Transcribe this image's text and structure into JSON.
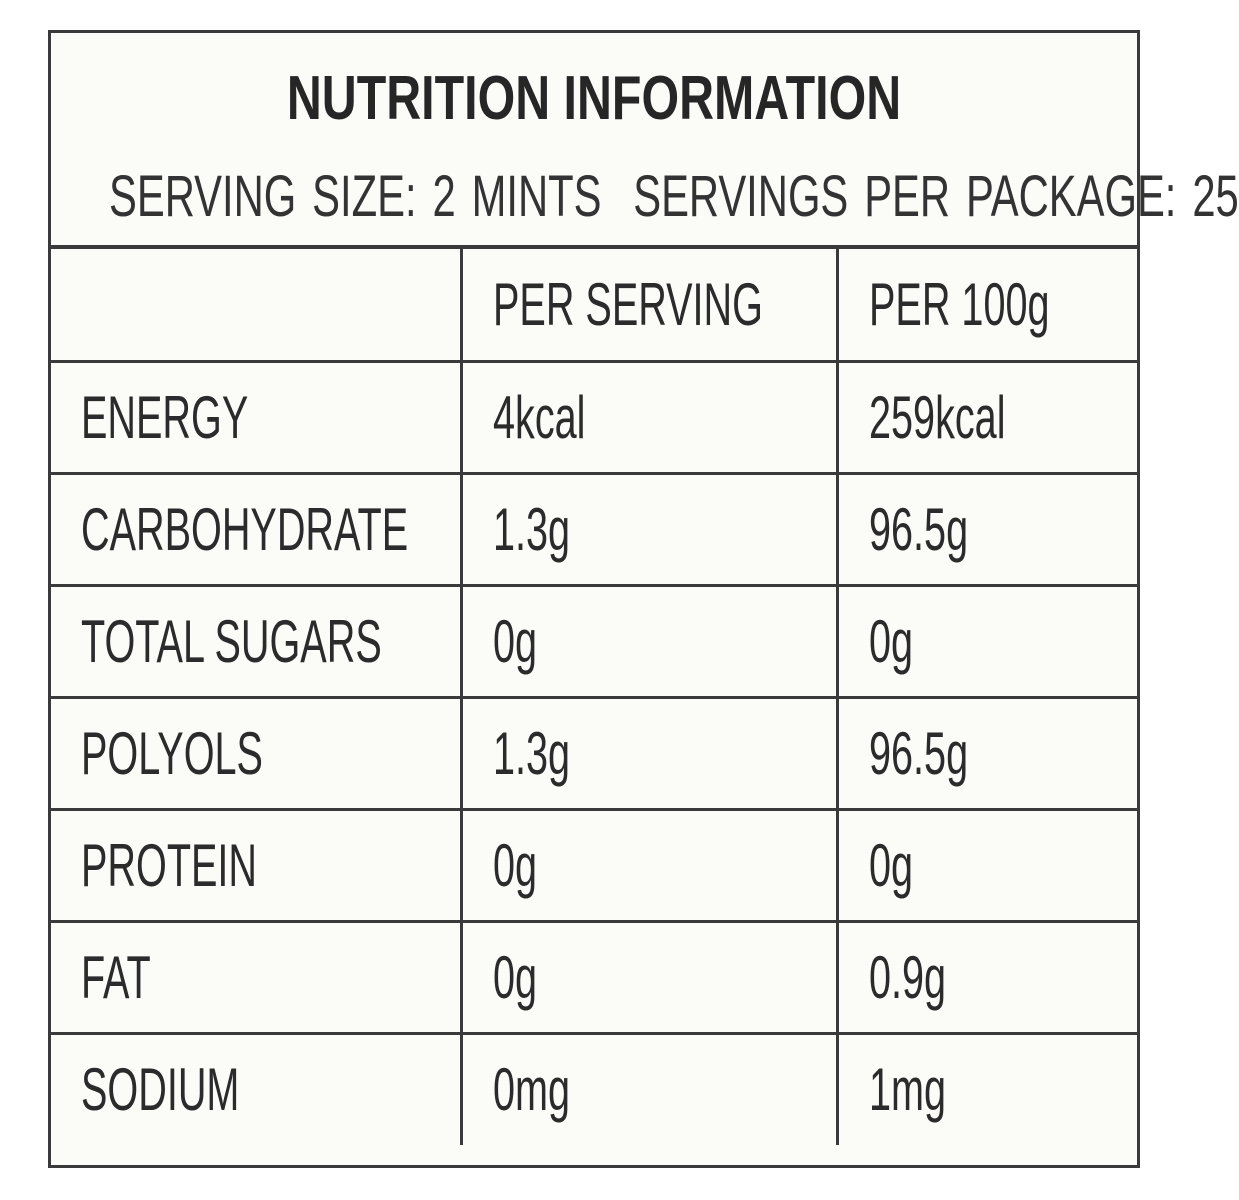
{
  "title": "NUTRITION INFORMATION",
  "serving": {
    "size": "SERVING SIZE: 2 MINTS",
    "per_package": "SERVINGS PER PACKAGE: 25"
  },
  "columns": [
    "",
    "PER SERVING",
    "PER 100g"
  ],
  "rows": [
    {
      "nutrient": "ENERGY",
      "per_serving": "4kcal",
      "per_100g": "259kcal"
    },
    {
      "nutrient": "CARBOHYDRATE",
      "per_serving": "1.3g",
      "per_100g": "96.5g"
    },
    {
      "nutrient": "TOTAL SUGARS",
      "per_serving": "0g",
      "per_100g": "0g"
    },
    {
      "nutrient": "POLYOLS",
      "per_serving": "1.3g",
      "per_100g": "96.5g"
    },
    {
      "nutrient": "PROTEIN",
      "per_serving": "0g",
      "per_100g": "0g"
    },
    {
      "nutrient": "FAT",
      "per_serving": "0g",
      "per_100g": "0.9g"
    },
    {
      "nutrient": "SODIUM",
      "per_serving": "0mg",
      "per_100g": "1mg"
    }
  ]
}
